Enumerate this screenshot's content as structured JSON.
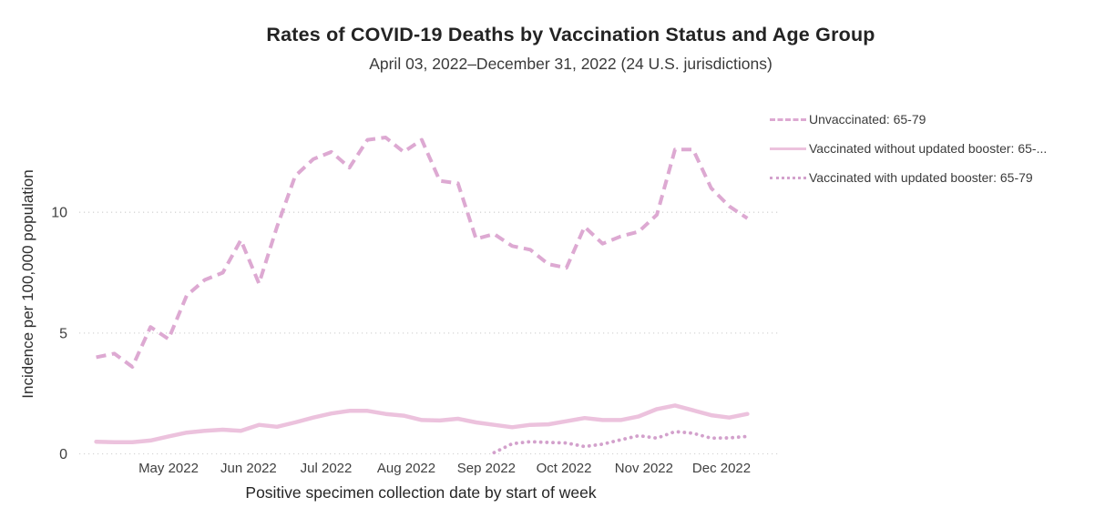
{
  "header": {
    "title": "Rates of COVID-19 Deaths by Vaccination Status and Age Group",
    "subtitle": "April 03, 2022–December 31, 2022 (24 U.S. jurisdictions)"
  },
  "legend": {
    "position": "right",
    "items": [
      {
        "label": "Unvaccinated: 65-79",
        "style": "dashed",
        "color": "#dda9d2"
      },
      {
        "label": "Vaccinated without updated booster: 65-...",
        "style": "solid",
        "color": "#ecc2dd"
      },
      {
        "label": "Vaccinated with updated booster: 65-79",
        "style": "dotted",
        "color": "#d3a1cc"
      }
    ]
  },
  "chart_data": {
    "type": "line",
    "title": "Rates of COVID-19 Deaths by Vaccination Status and Age Group",
    "subtitle": "April 03, 2022–December 31, 2022 (24 U.S. jurisdictions)",
    "xlabel": "Positive specimen collection date by start of week",
    "ylabel": "Incidence per 100,000 population",
    "ylim": [
      0,
      14.7
    ],
    "yticks": [
      0,
      5,
      10
    ],
    "grid": "horizontal-dotted",
    "legend_position": "right",
    "grid_color": "#d5d5d5",
    "x_dates": [
      "2022-04-03",
      "2022-04-10",
      "2022-04-17",
      "2022-04-24",
      "2022-05-01",
      "2022-05-08",
      "2022-05-15",
      "2022-05-22",
      "2022-05-29",
      "2022-06-05",
      "2022-06-12",
      "2022-06-19",
      "2022-06-26",
      "2022-07-03",
      "2022-07-10",
      "2022-07-17",
      "2022-07-24",
      "2022-07-31",
      "2022-08-07",
      "2022-08-14",
      "2022-08-21",
      "2022-08-28",
      "2022-09-04",
      "2022-09-11",
      "2022-09-18",
      "2022-09-25",
      "2022-10-02",
      "2022-10-09",
      "2022-10-16",
      "2022-10-23",
      "2022-10-30",
      "2022-11-06",
      "2022-11-13",
      "2022-11-20",
      "2022-11-27",
      "2022-12-04",
      "2022-12-11"
    ],
    "xticks": [
      {
        "label": "May 2022",
        "date": "2022-05-01"
      },
      {
        "label": "Jun 2022",
        "date": "2022-06-01"
      },
      {
        "label": "Jul 2022",
        "date": "2022-07-01"
      },
      {
        "label": "Aug 2022",
        "date": "2022-08-01"
      },
      {
        "label": "Sep 2022",
        "date": "2022-09-01"
      },
      {
        "label": "Oct 2022",
        "date": "2022-10-01"
      },
      {
        "label": "Nov 2022",
        "date": "2022-11-01"
      },
      {
        "label": "Dec 2022",
        "date": "2022-12-01"
      }
    ],
    "series": [
      {
        "name": "Unvaccinated: 65-79",
        "style": "dashed",
        "color": "#dda9d2",
        "start_index": 0,
        "values": [
          4.0,
          4.15,
          3.6,
          5.25,
          4.75,
          6.55,
          7.2,
          7.5,
          8.85,
          7.05,
          9.4,
          11.5,
          12.2,
          12.5,
          11.85,
          13.0,
          13.1,
          12.5,
          13.0,
          11.3,
          11.2,
          8.9,
          9.1,
          8.6,
          8.45,
          7.85,
          7.7,
          9.4,
          8.7,
          9.0,
          9.2,
          9.9,
          12.6,
          12.6,
          11.0,
          10.25,
          9.75
        ]
      },
      {
        "name": "Vaccinated without updated booster: 65-79",
        "style": "solid",
        "color": "#ecc2dd",
        "start_index": 0,
        "values": [
          0.5,
          0.48,
          0.48,
          0.55,
          0.72,
          0.88,
          0.95,
          1.0,
          0.95,
          1.2,
          1.12,
          1.3,
          1.5,
          1.67,
          1.78,
          1.78,
          1.65,
          1.58,
          1.4,
          1.38,
          1.45,
          1.3,
          1.2,
          1.1,
          1.2,
          1.22,
          1.35,
          1.48,
          1.4,
          1.4,
          1.55,
          1.85,
          2.0,
          1.8,
          1.6,
          1.5,
          1.65
        ]
      },
      {
        "name": "Vaccinated with updated booster: 65-79",
        "style": "dotted",
        "color": "#d3a1cc",
        "start_index": 22,
        "values": [
          0.05,
          0.42,
          0.5,
          0.47,
          0.45,
          0.3,
          0.4,
          0.58,
          0.75,
          0.65,
          0.92,
          0.85,
          0.65,
          0.66,
          0.72
        ]
      }
    ]
  }
}
